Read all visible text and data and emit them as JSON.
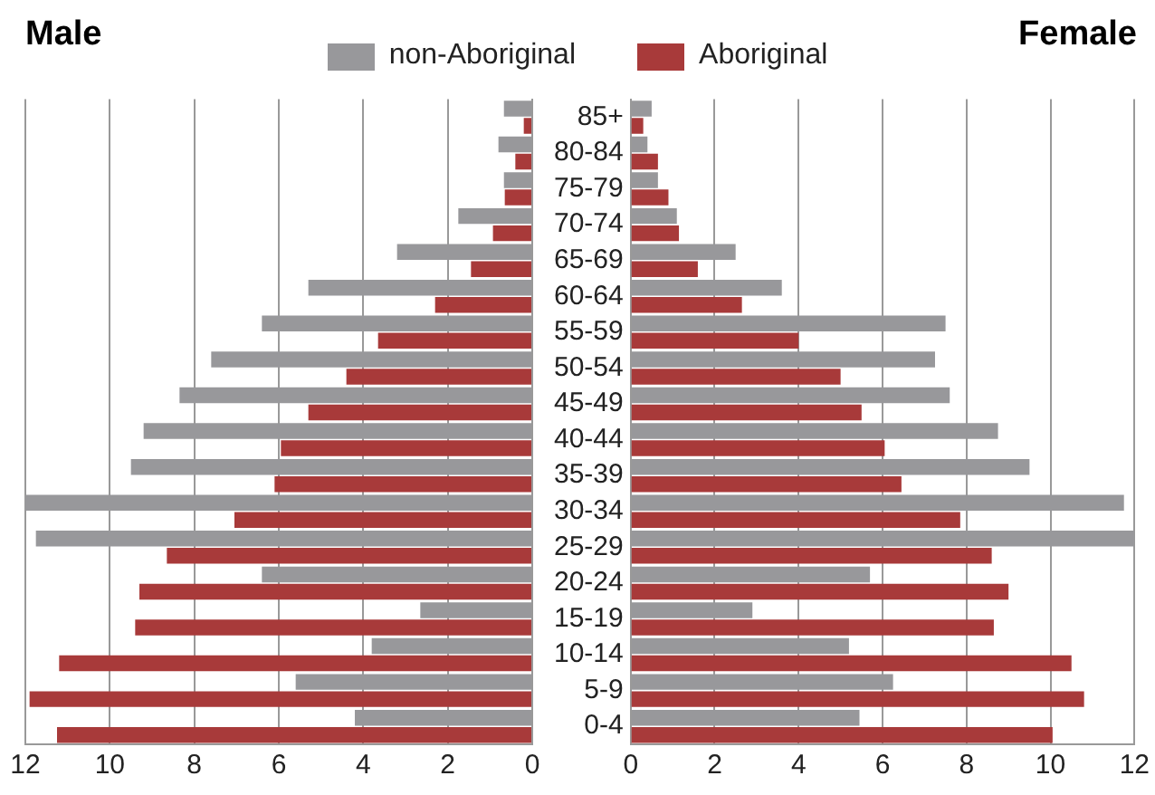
{
  "chart_data": [
    {
      "type": "bar",
      "orientation": "horizontal",
      "title": "Male",
      "legend": "top",
      "grid": "x",
      "tick_labels": "x",
      "xlim": [
        12,
        0
      ],
      "xticks": [
        12,
        10,
        8,
        6,
        4,
        2,
        0
      ],
      "series": [
        {
          "name": "non-Aboriginal",
          "color": "#98989b",
          "values": [
            0.67,
            0.8,
            0.67,
            1.75,
            3.2,
            5.3,
            6.4,
            7.6,
            8.35,
            9.2,
            9.5,
            12,
            11.75,
            6.4,
            2.65,
            3.8,
            5.6,
            4.2
          ]
        },
        {
          "name": "Aboriginal",
          "color": "#a83a3a",
          "values": [
            0.2,
            0.4,
            0.65,
            0.93,
            1.45,
            2.3,
            3.65,
            4.4,
            5.3,
            5.95,
            6.1,
            7.05,
            8.65,
            9.3,
            9.4,
            11.2,
            11.9,
            11.25
          ]
        }
      ]
    },
    {
      "type": "bar",
      "orientation": "horizontal",
      "title": "Female",
      "grid": "x",
      "categories": [
        "85+",
        "80-84",
        "75-79",
        "70-74",
        "65-69",
        "60-64",
        "55-59",
        "50-54",
        "45-49",
        "40-44",
        "35-39",
        "30-34",
        "25-29",
        "20-24",
        "15-19",
        "10-14",
        "5-9",
        "0-4"
      ],
      "xlim": [
        0,
        12
      ],
      "xticks": [
        0,
        2,
        4,
        6,
        8,
        10,
        12
      ],
      "series": [
        {
          "color": "#98989b",
          "values": [
            0.5,
            0.4,
            0.65,
            1.1,
            2.5,
            3.6,
            7.5,
            7.25,
            7.6,
            8.75,
            9.5,
            11.75,
            12,
            5.7,
            2.9,
            5.2,
            6.25,
            5.45
          ]
        },
        {
          "color": "#a83a3a",
          "values": [
            0.3,
            0.65,
            0.9,
            1.15,
            1.6,
            2.65,
            4.0,
            5.0,
            5.5,
            6.05,
            6.45,
            7.85,
            8.6,
            9.0,
            8.65,
            10.5,
            10.8,
            10.05
          ]
        }
      ]
    }
  ]
}
